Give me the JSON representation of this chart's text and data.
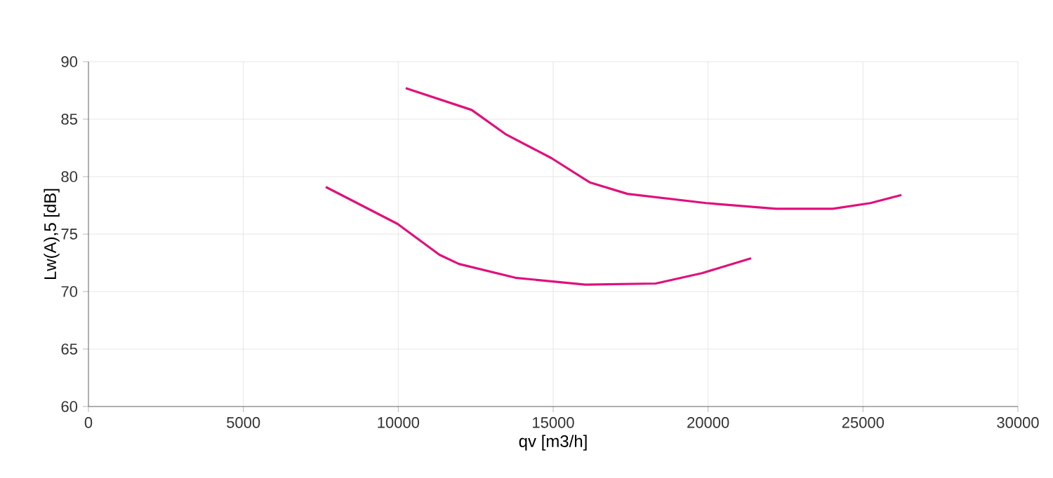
{
  "chart_data": {
    "type": "line",
    "xlabel": "qv [m3/h]",
    "ylabel": "Lw(A),5 [dB]",
    "xlim": [
      0,
      30000
    ],
    "ylim": [
      60,
      90
    ],
    "xticks": [
      0,
      5000,
      10000,
      15000,
      20000,
      25000,
      30000
    ],
    "yticks": [
      60,
      65,
      70,
      75,
      80,
      85,
      90
    ],
    "grid": true,
    "marker": "none",
    "line_style": "solid",
    "series": [
      {
        "color": "#e0107a",
        "x": [
          10240,
          12370,
          13460,
          14950,
          16180,
          17400,
          19940,
          22200,
          24020,
          25240,
          26240
        ],
        "values": [
          87.7,
          85.8,
          83.7,
          81.6,
          79.5,
          78.5,
          77.7,
          77.2,
          77.2,
          77.7,
          78.4
        ]
      },
      {
        "color": "#e0107a",
        "x": [
          7660,
          9970,
          11330,
          11960,
          13780,
          16040,
          18310,
          19800,
          21390
        ],
        "values": [
          79.1,
          75.9,
          73.2,
          72.4,
          71.2,
          70.6,
          70.7,
          71.6,
          72.9
        ]
      }
    ]
  }
}
